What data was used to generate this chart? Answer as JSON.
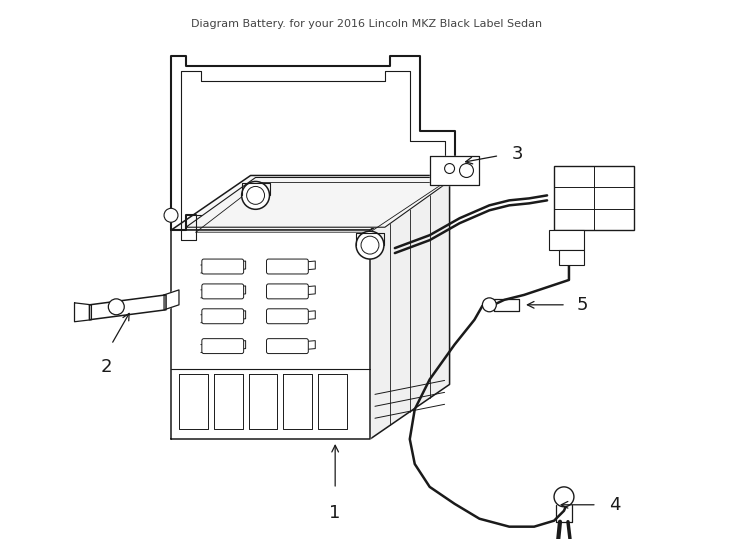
{
  "title": "Diagram Battery. for your 2016 Lincoln MKZ Black Label Sedan",
  "bg": "#ffffff",
  "lc": "#1a1a1a",
  "lw": 1.1,
  "fig_w": 7.34,
  "fig_h": 5.4,
  "dpi": 100
}
